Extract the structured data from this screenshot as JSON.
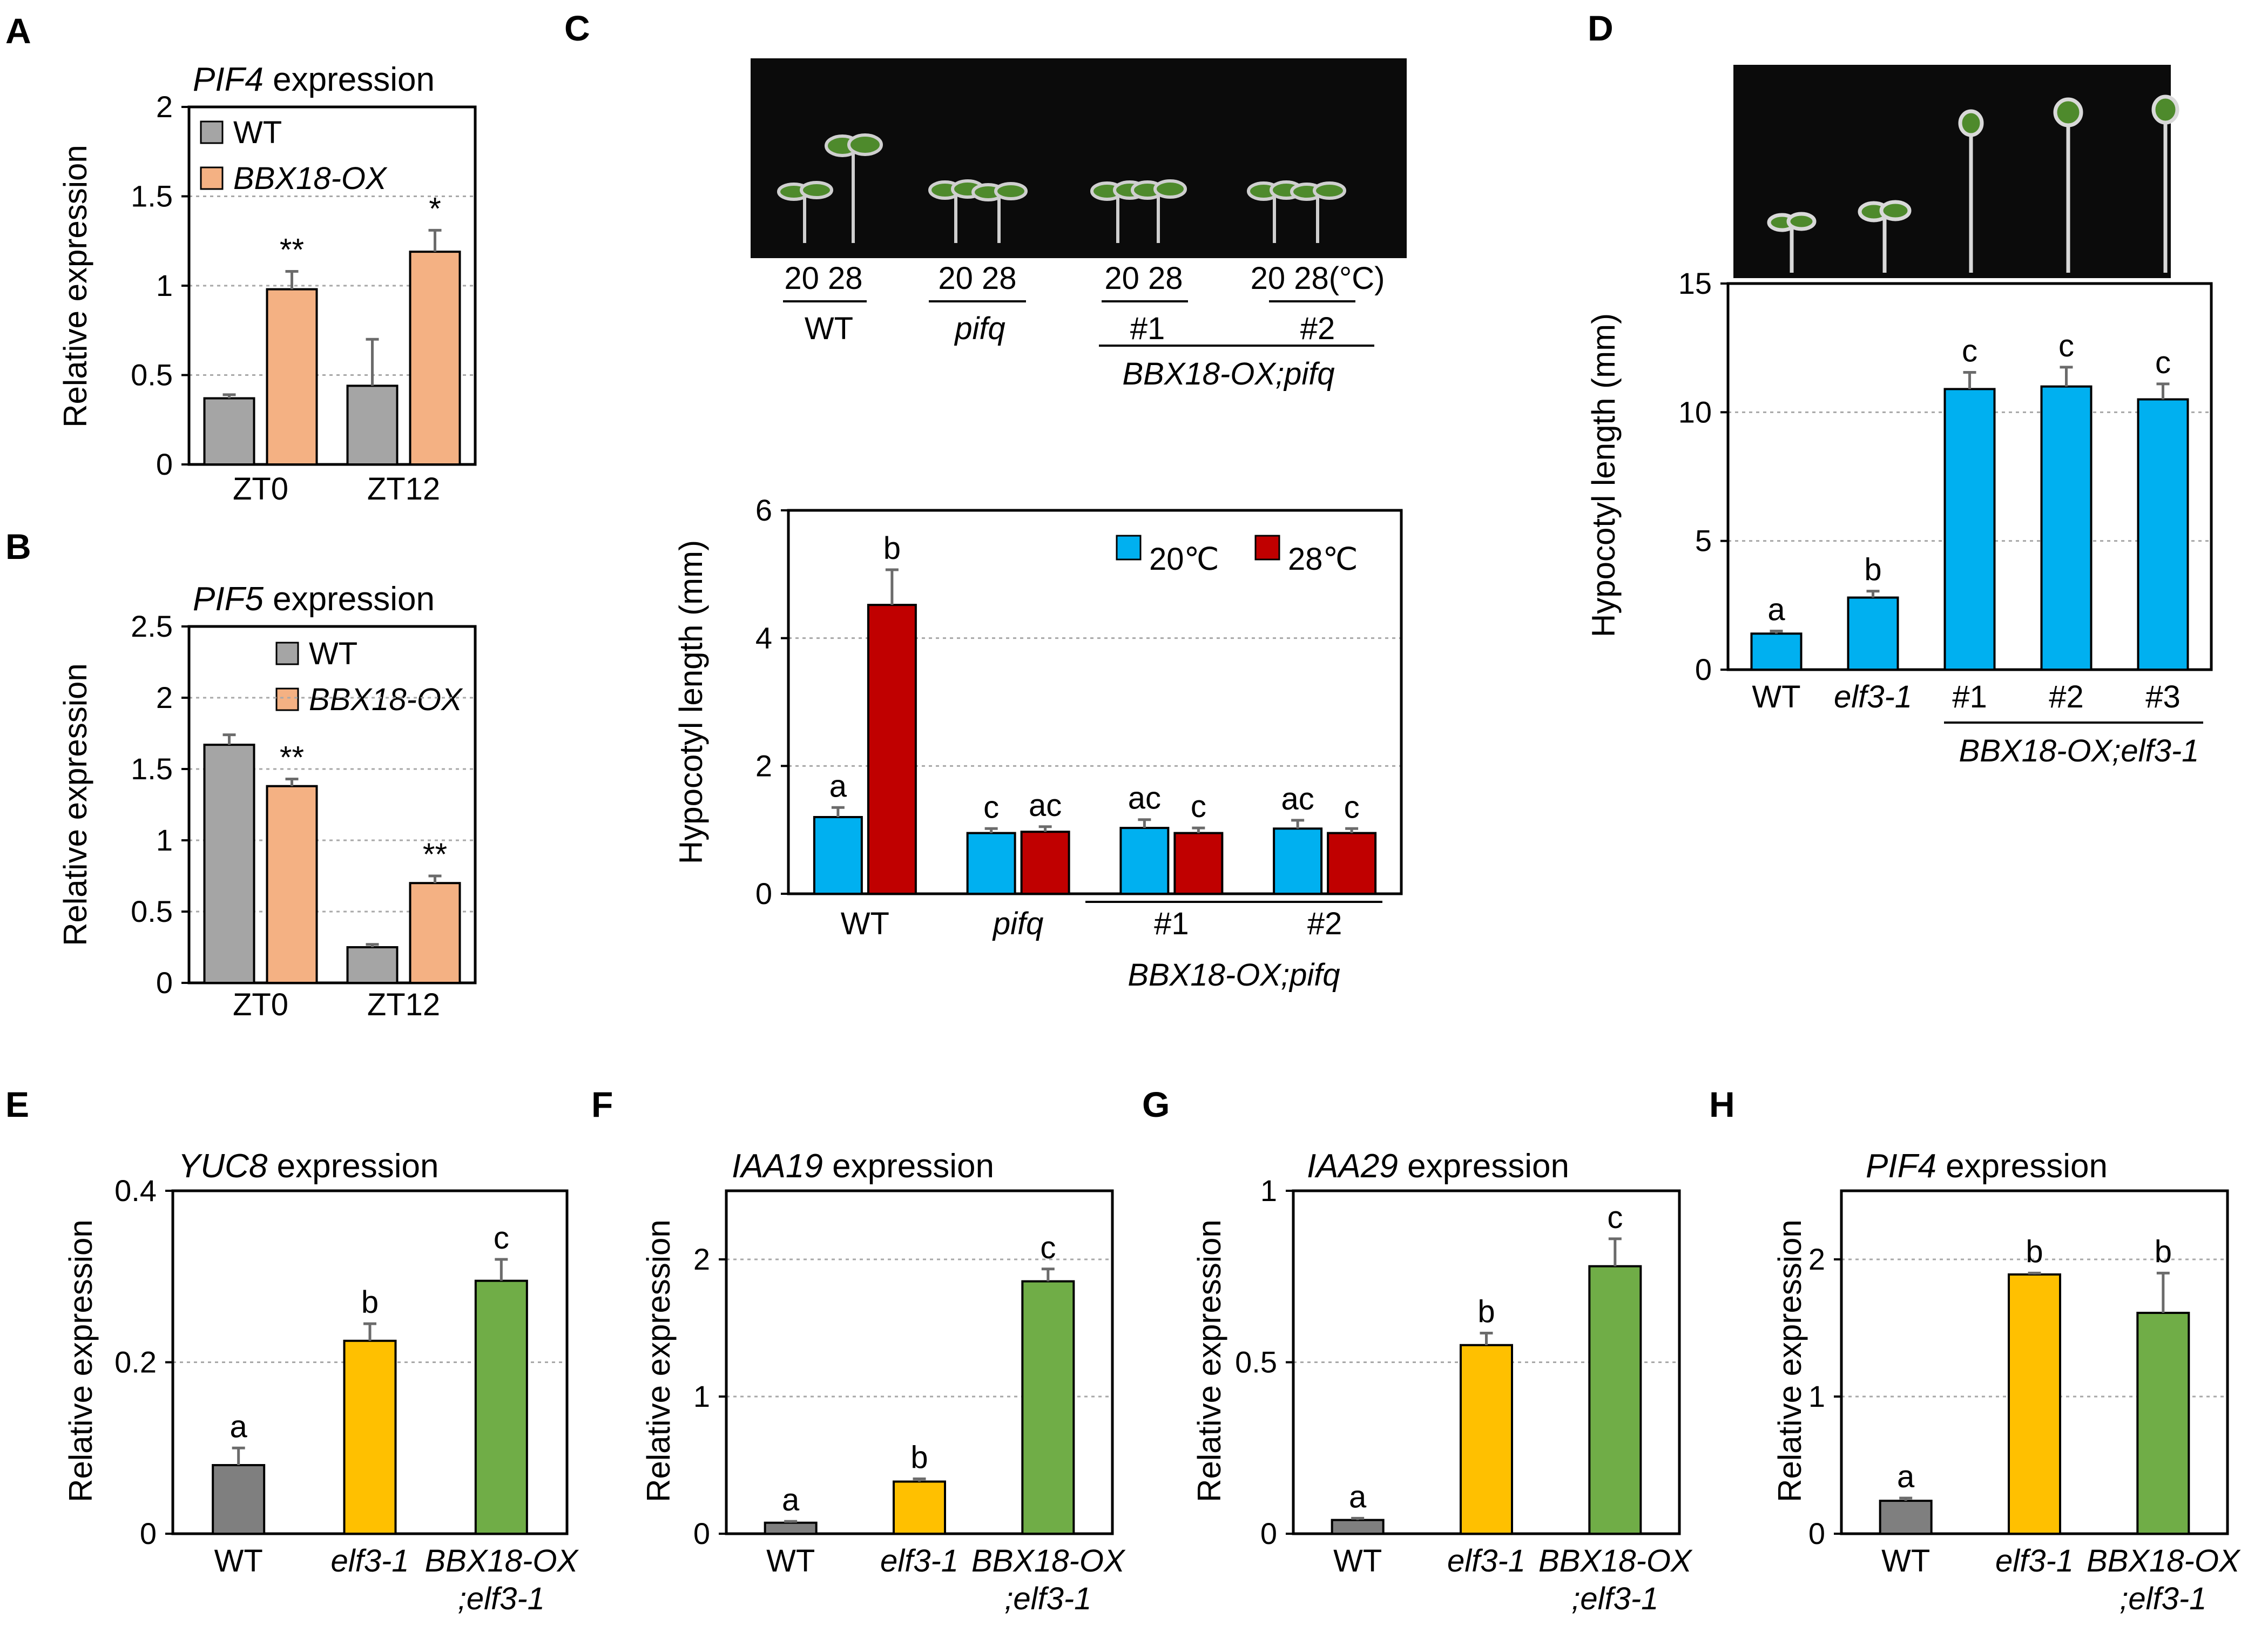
{
  "panels": {
    "A": {
      "letter": "A",
      "title_gene": "PIF4",
      "title_rest": " expression",
      "ylabel": "Relative expression",
      "legend": [
        "WT",
        "BBX18-OX"
      ]
    },
    "B": {
      "letter": "B",
      "title_gene": "PIF5",
      "title_rest": " expression",
      "ylabel": "Relative expression",
      "legend": [
        "WT",
        "BBX18-OX"
      ]
    },
    "C": {
      "letter": "C",
      "ylabel": "Hypocotyl length (mm)",
      "legend": [
        "20℃",
        "28℃"
      ],
      "photo_temps": [
        "20 28",
        "20 28",
        "20 28",
        "20 28(°C)"
      ],
      "photo_groups": [
        "WT",
        "pifq",
        "#1",
        "#2"
      ],
      "photo_bracket": "BBX18-OX;pifq",
      "bracket": "BBX18-OX;pifq"
    },
    "D": {
      "letter": "D",
      "ylabel": "Hypocotyl length (mm)",
      "bracket": "BBX18-OX;elf3-1"
    },
    "E": {
      "letter": "E",
      "title_gene": "YUC8",
      "title_rest": " expression",
      "ylabel": "Relative expression"
    },
    "F": {
      "letter": "F",
      "title_gene": "IAA19",
      "title_rest": " expression",
      "ylabel": "Relative expression"
    },
    "G": {
      "letter": "G",
      "title_gene": "IAA29",
      "title_rest": " expression",
      "ylabel": "Relative expression"
    },
    "H": {
      "letter": "H",
      "title_gene": "PIF4",
      "title_rest": " expression",
      "ylabel": "Relative expression"
    }
  },
  "colors": {
    "wt_gray": "#a5a5a5",
    "ox_orange": "#f4b183",
    "blue": "#00b0f0",
    "red": "#c00000",
    "dark_gray": "#7f7f7f",
    "yellow": "#ffc000",
    "green": "#70ad47"
  },
  "chart_data": [
    {
      "id": "A",
      "type": "bar",
      "title": "PIF4 expression",
      "ylabel": "Relative expression",
      "categories": [
        "ZT0",
        "ZT12"
      ],
      "ylim": [
        0,
        2
      ],
      "yticks": [
        "0",
        "0.5",
        "1",
        "1.5",
        "2"
      ],
      "series": [
        {
          "name": "WT",
          "values": [
            0.37,
            0.44
          ],
          "errors": [
            0.02,
            0.26
          ]
        },
        {
          "name": "BBX18-OX",
          "values": [
            0.98,
            1.19
          ],
          "errors": [
            0.1,
            0.12
          ]
        }
      ],
      "annotations": [
        [
          "",
          "**"
        ],
        [
          "",
          "*"
        ]
      ]
    },
    {
      "id": "B",
      "type": "bar",
      "title": "PIF5 expression",
      "ylabel": "Relative expression",
      "categories": [
        "ZT0",
        "ZT12"
      ],
      "ylim": [
        0,
        2.5
      ],
      "yticks": [
        "0",
        "0.5",
        "1",
        "1.5",
        "2",
        "2.5"
      ],
      "series": [
        {
          "name": "WT",
          "values": [
            1.67,
            0.25
          ],
          "errors": [
            0.07,
            0.02
          ]
        },
        {
          "name": "BBX18-OX",
          "values": [
            1.38,
            0.7
          ],
          "errors": [
            0.05,
            0.05
          ]
        }
      ],
      "annotations": [
        [
          "",
          "**"
        ],
        [
          "",
          "**"
        ]
      ]
    },
    {
      "id": "C",
      "type": "bar",
      "title": "",
      "ylabel": "Hypocotyl length (mm)",
      "categories": [
        "WT",
        "pifq",
        "#1",
        "#2"
      ],
      "ylim": [
        0,
        6
      ],
      "yticks": [
        "0",
        "2",
        "4",
        "6"
      ],
      "series": [
        {
          "name": "20℃",
          "values": [
            1.2,
            0.95,
            1.03,
            1.02
          ],
          "errors": [
            0.15,
            0.07,
            0.13,
            0.13
          ]
        },
        {
          "name": "28℃",
          "values": [
            4.52,
            0.97,
            0.95,
            0.95
          ],
          "errors": [
            0.55,
            0.08,
            0.08,
            0.07
          ]
        }
      ],
      "annotations": [
        [
          "a",
          "b"
        ],
        [
          "c",
          "ac"
        ],
        [
          "ac",
          "c"
        ],
        [
          "ac",
          "c"
        ]
      ]
    },
    {
      "id": "D",
      "type": "bar",
      "title": "",
      "ylabel": "Hypocotyl length (mm)",
      "categories": [
        "WT",
        "elf3-1",
        "#1",
        "#2",
        "#3"
      ],
      "ylim": [
        0,
        15
      ],
      "yticks": [
        "0",
        "5",
        "10",
        "15"
      ],
      "series": [
        {
          "name": "Hypocotyl length",
          "values": [
            1.4,
            2.8,
            10.9,
            11.0,
            10.5
          ],
          "errors": [
            0.1,
            0.25,
            0.65,
            0.75,
            0.6
          ]
        }
      ],
      "annotations": [
        [
          "a"
        ],
        [
          "b"
        ],
        [
          "c"
        ],
        [
          "c"
        ],
        [
          "c"
        ]
      ]
    },
    {
      "id": "E",
      "type": "bar",
      "title": "YUC8 expression",
      "ylabel": "Relative expression",
      "categories": [
        "WT",
        "elf3-1",
        "BBX18-OX;elf3-1"
      ],
      "ylim": [
        0,
        0.4
      ],
      "yticks": [
        "0",
        "0.2",
        "0.4"
      ],
      "series": [
        {
          "name": "Relative expression",
          "values": [
            0.08,
            0.225,
            0.295
          ],
          "errors": [
            0.02,
            0.02,
            0.025
          ]
        }
      ],
      "annotations": [
        [
          "a"
        ],
        [
          "b"
        ],
        [
          "c"
        ]
      ]
    },
    {
      "id": "F",
      "type": "bar",
      "title": "IAA19 expression",
      "ylabel": "Relative expression",
      "categories": [
        "WT",
        "elf3-1",
        "BBX18-OX;elf3-1"
      ],
      "ylim": [
        0,
        2.5
      ],
      "yticks": [
        "0",
        "1",
        "2"
      ],
      "series": [
        {
          "name": "Relative expression",
          "values": [
            0.08,
            0.38,
            1.84
          ],
          "errors": [
            0.01,
            0.02,
            0.09
          ]
        }
      ],
      "annotations": [
        [
          "a"
        ],
        [
          "b"
        ],
        [
          "c"
        ]
      ]
    },
    {
      "id": "G",
      "type": "bar",
      "title": "IAA29 expression",
      "ylabel": "Relative expression",
      "categories": [
        "WT",
        "elf3-1",
        "BBX18-OX;elf3-1"
      ],
      "ylim": [
        0,
        1
      ],
      "yticks": [
        "0",
        "0.5",
        "1"
      ],
      "series": [
        {
          "name": "Relative expression",
          "values": [
            0.04,
            0.55,
            0.78
          ],
          "errors": [
            0.005,
            0.035,
            0.08
          ]
        }
      ],
      "annotations": [
        [
          "a"
        ],
        [
          "b"
        ],
        [
          "c"
        ]
      ]
    },
    {
      "id": "H",
      "type": "bar",
      "title": "PIF4 expression",
      "ylabel": "Relative expression",
      "categories": [
        "WT",
        "elf3-1",
        "BBX18-OX;elf3-1"
      ],
      "ylim": [
        0,
        2.5
      ],
      "yticks": [
        "0",
        "1",
        "2"
      ],
      "series": [
        {
          "name": "Relative expression",
          "values": [
            0.24,
            1.89,
            1.61
          ],
          "errors": [
            0.02,
            0.01,
            0.29
          ]
        }
      ],
      "annotations": [
        [
          "a"
        ],
        [
          "b"
        ],
        [
          "b"
        ]
      ]
    }
  ]
}
